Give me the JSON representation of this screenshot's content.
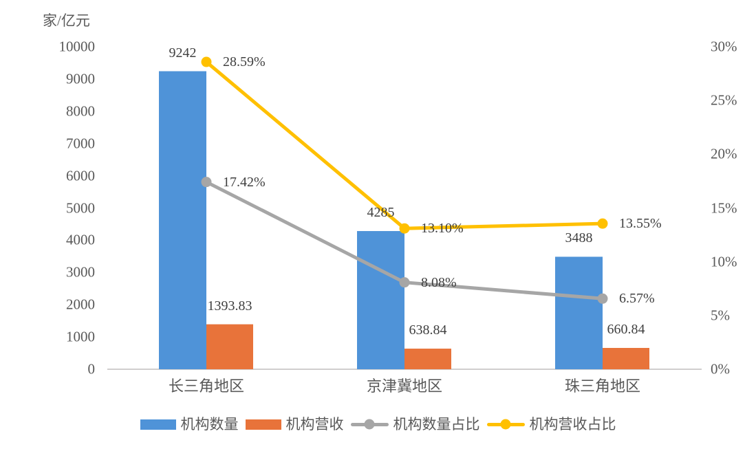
{
  "styles": {
    "background": "#ffffff",
    "axis_text_color": "#595959",
    "data_label_color": "#3f3f3f",
    "axis_line_color": "#d0cece",
    "bar_count_color": "#4f93d8",
    "bar_revenue_color": "#e8733a",
    "line_count_share_color": "#a6a6a6",
    "line_revenue_share_color": "#ffc000"
  },
  "chart_data": {
    "type": "bar",
    "subtype": "combo-bar-line-dual-axis",
    "title": "",
    "categories": [
      "长三角地区",
      "京津冀地区",
      "珠三角地区"
    ],
    "left_axis": {
      "title": "家/亿元",
      "min": 0,
      "max": 10000,
      "step": 1000,
      "tick_labels": [
        "0",
        "1000",
        "2000",
        "3000",
        "4000",
        "5000",
        "6000",
        "7000",
        "8000",
        "9000",
        "10000"
      ]
    },
    "right_axis": {
      "min": 0,
      "max": 30,
      "step": 5,
      "tick_labels": [
        "0%",
        "5%",
        "10%",
        "15%",
        "20%",
        "25%",
        "30%"
      ]
    },
    "series": [
      {
        "name": "机构数量",
        "slug": "institution-count",
        "type": "bar",
        "axis": "left",
        "color": "#4f93d8",
        "values": [
          9242,
          4285,
          3488
        ],
        "data_labels": [
          "9242",
          "4285",
          "3488"
        ]
      },
      {
        "name": "机构营收",
        "slug": "institution-revenue",
        "type": "bar",
        "axis": "left",
        "color": "#e8733a",
        "values": [
          1393.83,
          638.84,
          660.84
        ],
        "data_labels": [
          "1393.83",
          "638.84",
          "660.84"
        ]
      },
      {
        "name": "机构数量占比",
        "slug": "institution-count-share",
        "type": "line",
        "axis": "right",
        "color": "#a6a6a6",
        "values": [
          17.42,
          8.08,
          6.57
        ],
        "data_labels": [
          "17.42%",
          "8.08%",
          "6.57%"
        ]
      },
      {
        "name": "机构营收占比",
        "slug": "institution-revenue-share",
        "type": "line",
        "axis": "right",
        "color": "#ffc000",
        "values": [
          28.59,
          13.1,
          13.55
        ],
        "data_labels": [
          "28.59%",
          "13.10%",
          "13.55%"
        ]
      }
    ],
    "legend_position": "bottom",
    "grid": false
  },
  "legend": {
    "items": [
      {
        "label": "机构数量",
        "marker": "bar-swatch",
        "color": "#4f93d8"
      },
      {
        "label": "机构营收",
        "marker": "bar-swatch",
        "color": "#e8733a"
      },
      {
        "label": "机构数量占比",
        "marker": "line-dot",
        "color": "#a6a6a6"
      },
      {
        "label": "机构营收占比",
        "marker": "line-dot",
        "color": "#ffc000"
      }
    ]
  }
}
